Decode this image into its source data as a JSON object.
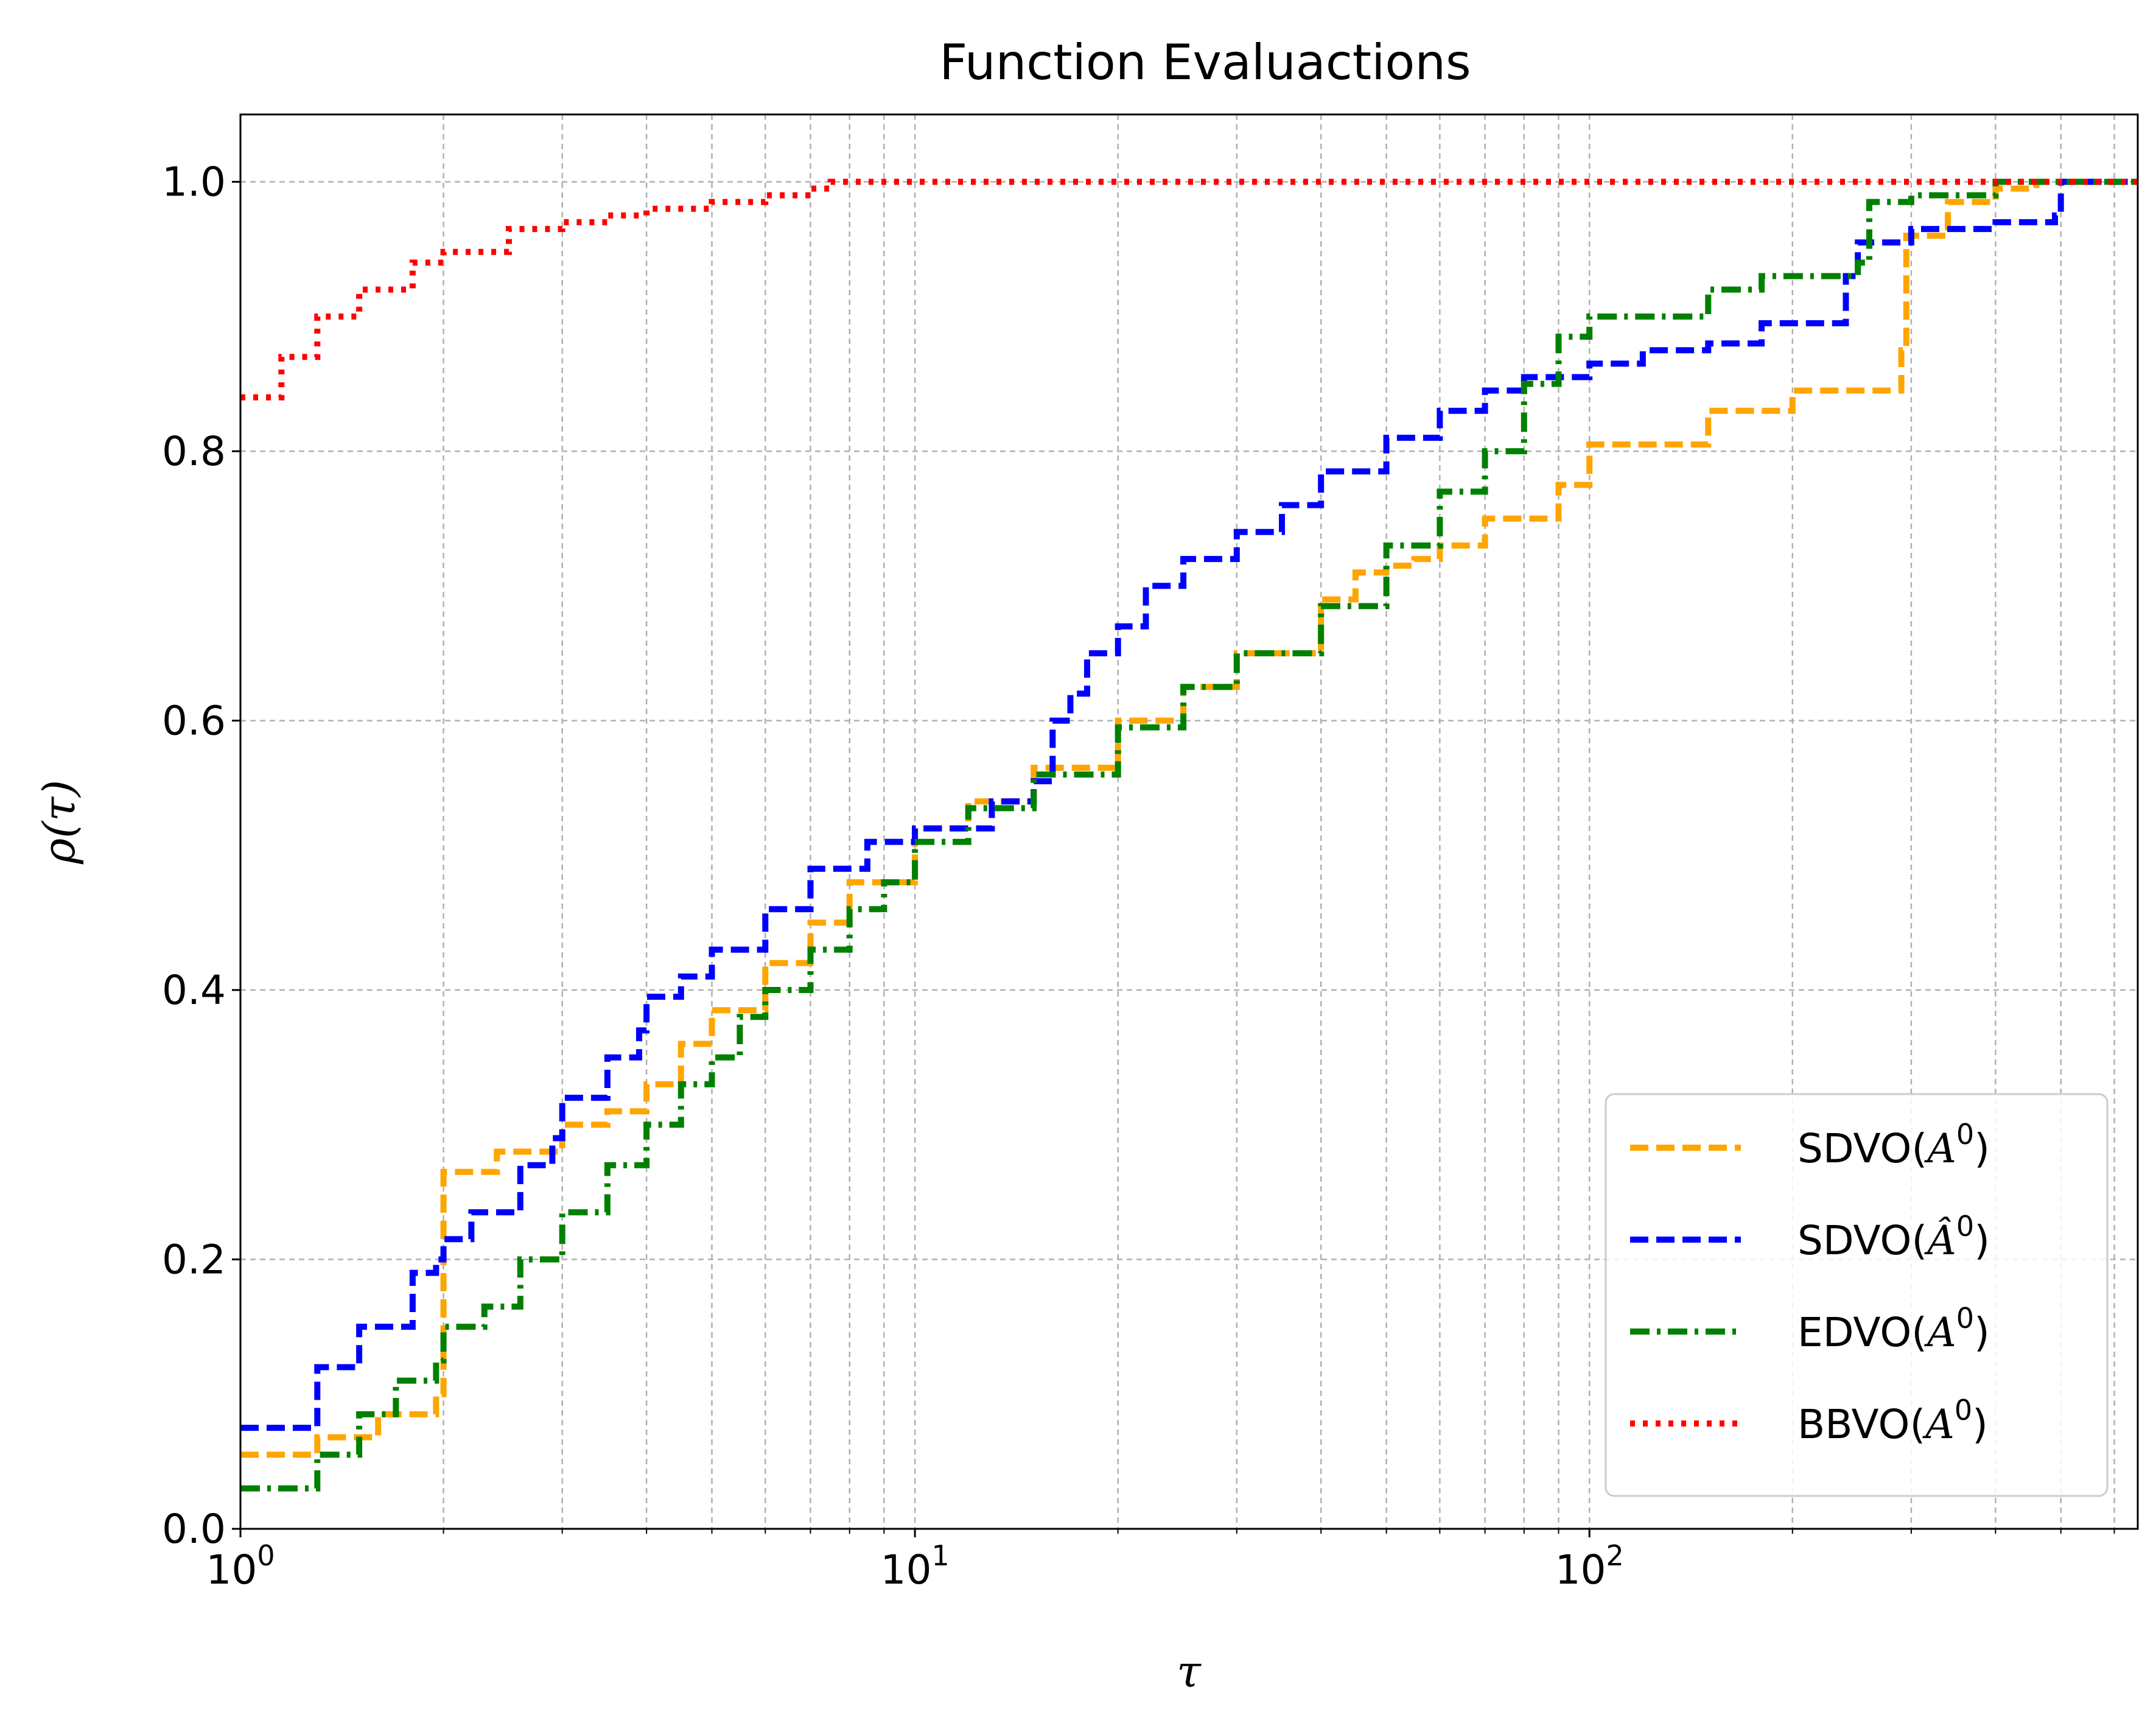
{
  "chart_data": {
    "type": "line",
    "title": "Function Evaluactions",
    "xlabel": "τ",
    "ylabel": "ρ(τ)",
    "xscale": "log",
    "xlim": [
      1,
      650
    ],
    "ylim": [
      0,
      1.05
    ],
    "xticks": [
      {
        "value": 1,
        "base": "10",
        "exp": "0"
      },
      {
        "value": 10,
        "base": "10",
        "exp": "1"
      },
      {
        "value": 100,
        "base": "10",
        "exp": "2"
      }
    ],
    "yticks": [
      {
        "value": 0.0,
        "label": "0.0"
      },
      {
        "value": 0.2,
        "label": "0.2"
      },
      {
        "value": 0.4,
        "label": "0.4"
      },
      {
        "value": 0.6,
        "label": "0.6"
      },
      {
        "value": 0.8,
        "label": "0.8"
      },
      {
        "value": 1.0,
        "label": "1.0"
      }
    ],
    "grid": true,
    "legend_position": "lower-right",
    "series": [
      {
        "name": "SDVO(A⁰)",
        "legend_base": "SDVO(",
        "legend_symbol": "A",
        "legend_hat": false,
        "legend_sup": "0",
        "legend_close": ")",
        "color": "#FFA500",
        "dash": "dashed",
        "points": [
          [
            1,
            0.055
          ],
          [
            1.3,
            0.068
          ],
          [
            1.6,
            0.085
          ],
          [
            1.95,
            0.1
          ],
          [
            1.99,
            0.1
          ],
          [
            2.0,
            0.265
          ],
          [
            2.4,
            0.28
          ],
          [
            3.0,
            0.3
          ],
          [
            3.5,
            0.31
          ],
          [
            4.0,
            0.33
          ],
          [
            4.5,
            0.36
          ],
          [
            5.0,
            0.385
          ],
          [
            6.0,
            0.42
          ],
          [
            7.0,
            0.45
          ],
          [
            8.0,
            0.48
          ],
          [
            10,
            0.52
          ],
          [
            12,
            0.54
          ],
          [
            15,
            0.565
          ],
          [
            20,
            0.6
          ],
          [
            25,
            0.625
          ],
          [
            30,
            0.65
          ],
          [
            40,
            0.69
          ],
          [
            45,
            0.71
          ],
          [
            50,
            0.715
          ],
          [
            55,
            0.72
          ],
          [
            60,
            0.73
          ],
          [
            70,
            0.75
          ],
          [
            90,
            0.775
          ],
          [
            100,
            0.805
          ],
          [
            150,
            0.83
          ],
          [
            200,
            0.845
          ],
          [
            290,
            0.875
          ],
          [
            295,
            0.96
          ],
          [
            340,
            0.985
          ],
          [
            400,
            0.995
          ],
          [
            460,
            1.0
          ],
          [
            650,
            1.0
          ]
        ]
      },
      {
        "name": "SDVO(Â⁰)",
        "legend_base": "SDVO(",
        "legend_symbol": "A",
        "legend_hat": true,
        "legend_sup": "0",
        "legend_close": ")",
        "color": "#0000FF",
        "dash": "dashed",
        "points": [
          [
            1,
            0.075
          ],
          [
            1.3,
            0.12
          ],
          [
            1.5,
            0.15
          ],
          [
            1.8,
            0.19
          ],
          [
            1.95,
            0.2
          ],
          [
            2.0,
            0.215
          ],
          [
            2.2,
            0.235
          ],
          [
            2.6,
            0.27
          ],
          [
            2.9,
            0.29
          ],
          [
            3.0,
            0.32
          ],
          [
            3.5,
            0.35
          ],
          [
            3.9,
            0.37
          ],
          [
            4.0,
            0.395
          ],
          [
            4.5,
            0.41
          ],
          [
            5.0,
            0.43
          ],
          [
            6.0,
            0.46
          ],
          [
            7.0,
            0.49
          ],
          [
            8.5,
            0.51
          ],
          [
            10,
            0.52
          ],
          [
            13,
            0.54
          ],
          [
            15,
            0.555
          ],
          [
            16,
            0.6
          ],
          [
            17,
            0.62
          ],
          [
            18,
            0.65
          ],
          [
            20,
            0.67
          ],
          [
            22,
            0.7
          ],
          [
            25,
            0.72
          ],
          [
            30,
            0.74
          ],
          [
            35,
            0.76
          ],
          [
            40,
            0.785
          ],
          [
            50,
            0.81
          ],
          [
            60,
            0.83
          ],
          [
            70,
            0.845
          ],
          [
            80,
            0.855
          ],
          [
            100,
            0.865
          ],
          [
            120,
            0.875
          ],
          [
            150,
            0.88
          ],
          [
            180,
            0.895
          ],
          [
            240,
            0.93
          ],
          [
            250,
            0.955
          ],
          [
            300,
            0.965
          ],
          [
            400,
            0.97
          ],
          [
            490,
            0.975
          ],
          [
            500,
            1.0
          ],
          [
            650,
            1.0
          ]
        ]
      },
      {
        "name": "EDVO(A⁰)",
        "legend_base": "EDVO(",
        "legend_symbol": "A",
        "legend_hat": false,
        "legend_sup": "0",
        "legend_close": ")",
        "color": "#008000",
        "dash": "dashdot",
        "points": [
          [
            1,
            0.03
          ],
          [
            1.3,
            0.055
          ],
          [
            1.5,
            0.085
          ],
          [
            1.7,
            0.11
          ],
          [
            1.95,
            0.125
          ],
          [
            2.0,
            0.15
          ],
          [
            2.3,
            0.165
          ],
          [
            2.6,
            0.2
          ],
          [
            3.0,
            0.235
          ],
          [
            3.5,
            0.27
          ],
          [
            4.0,
            0.3
          ],
          [
            4.5,
            0.33
          ],
          [
            5.0,
            0.35
          ],
          [
            5.5,
            0.38
          ],
          [
            6.0,
            0.4
          ],
          [
            7.0,
            0.43
          ],
          [
            8.0,
            0.46
          ],
          [
            9.0,
            0.48
          ],
          [
            10,
            0.51
          ],
          [
            12,
            0.535
          ],
          [
            15,
            0.56
          ],
          [
            20,
            0.595
          ],
          [
            25,
            0.625
          ],
          [
            30,
            0.65
          ],
          [
            40,
            0.685
          ],
          [
            50,
            0.73
          ],
          [
            60,
            0.77
          ],
          [
            70,
            0.8
          ],
          [
            80,
            0.85
          ],
          [
            90,
            0.885
          ],
          [
            100,
            0.9
          ],
          [
            150,
            0.92
          ],
          [
            180,
            0.93
          ],
          [
            250,
            0.94
          ],
          [
            260,
            0.985
          ],
          [
            300,
            0.99
          ],
          [
            400,
            1.0
          ],
          [
            650,
            1.0
          ]
        ]
      },
      {
        "name": "BBVO(A⁰)",
        "legend_base": "BBVO(",
        "legend_symbol": "A",
        "legend_hat": false,
        "legend_sup": "0",
        "legend_close": ")",
        "color": "#FF0000",
        "dash": "dotted",
        "points": [
          [
            1,
            0.84
          ],
          [
            1.15,
            0.87
          ],
          [
            1.3,
            0.9
          ],
          [
            1.5,
            0.92
          ],
          [
            1.8,
            0.94
          ],
          [
            2.0,
            0.948
          ],
          [
            2.5,
            0.965
          ],
          [
            3.0,
            0.97
          ],
          [
            3.5,
            0.975
          ],
          [
            4.0,
            0.98
          ],
          [
            5.0,
            0.985
          ],
          [
            6.0,
            0.99
          ],
          [
            7.0,
            0.995
          ],
          [
            7.5,
            1.0
          ],
          [
            650,
            1.0
          ]
        ]
      }
    ]
  }
}
